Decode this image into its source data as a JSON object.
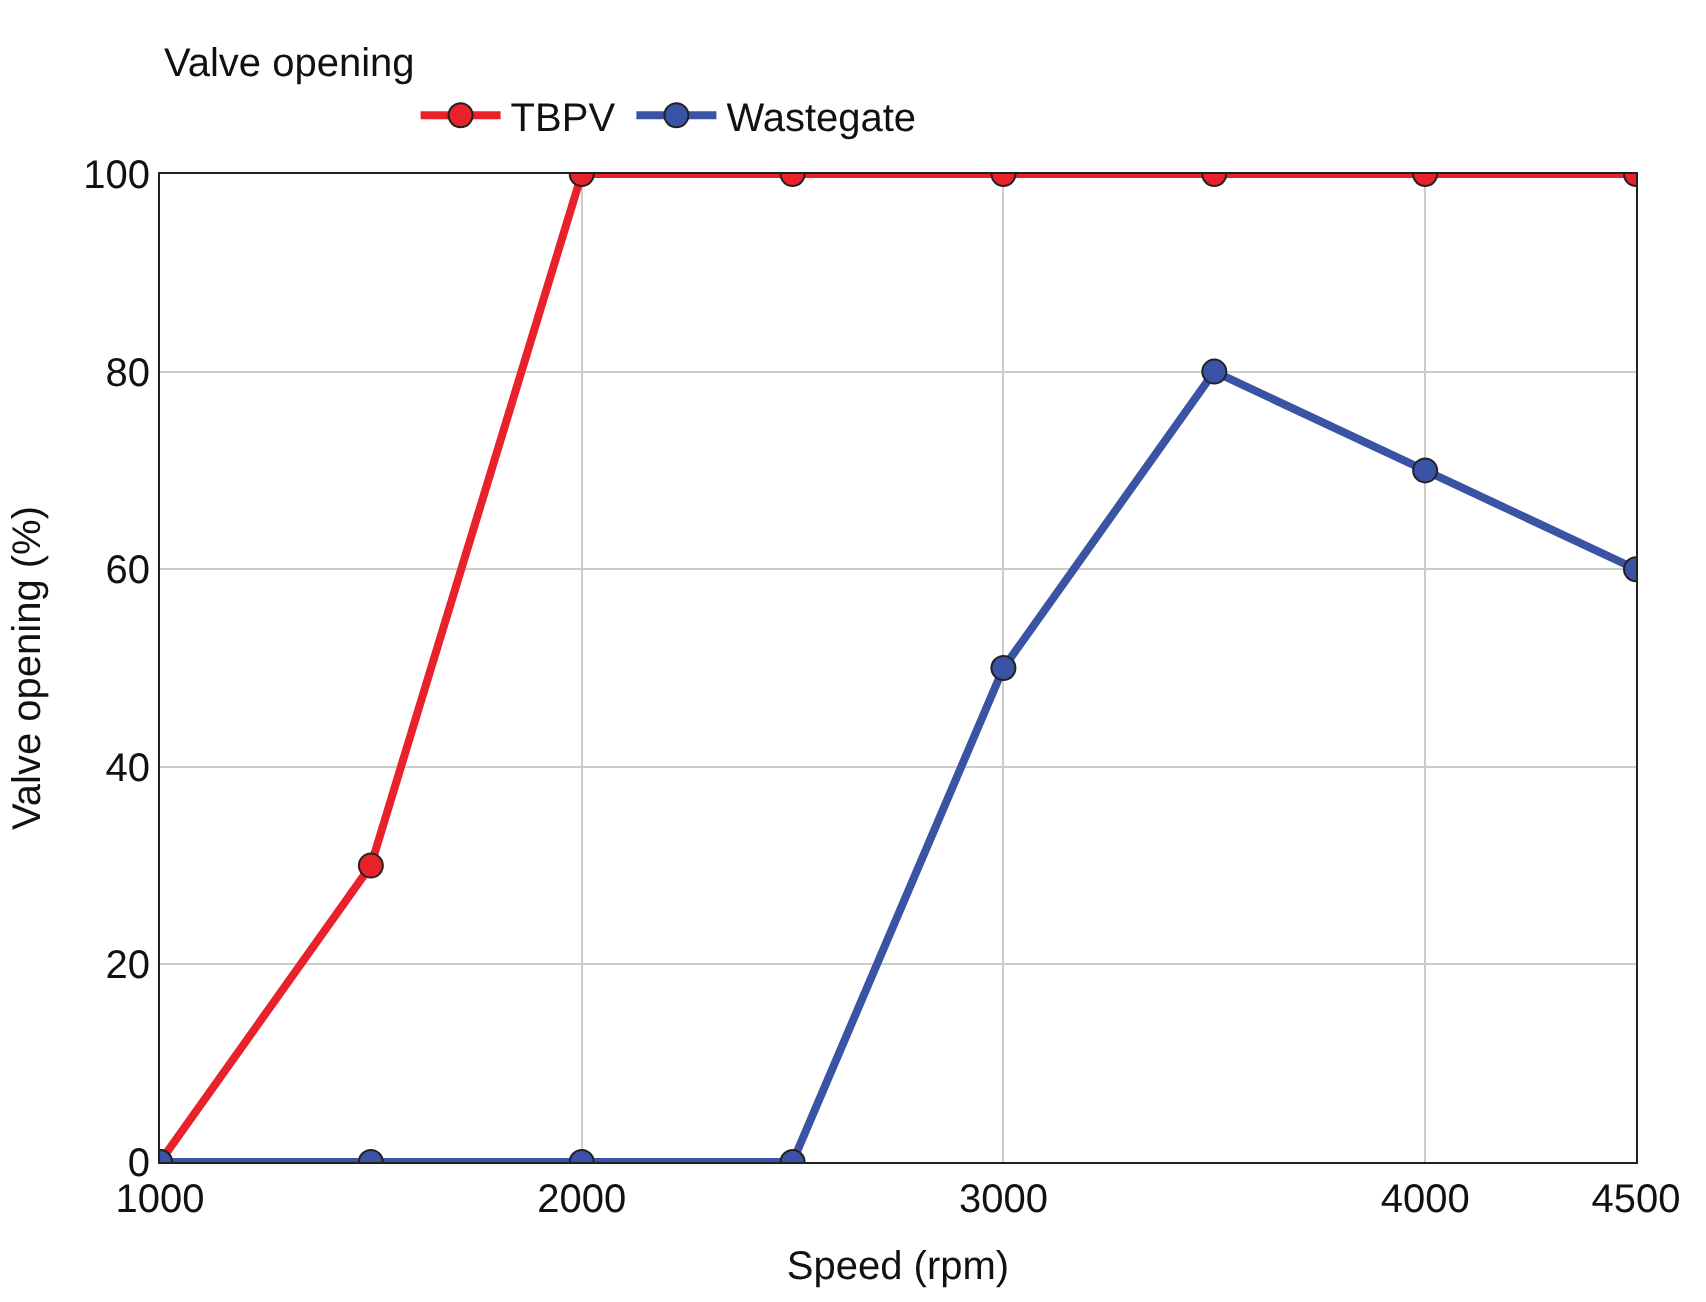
{
  "chart_data": {
    "type": "line",
    "xlabel": "Speed (rpm)",
    "ylabel": "Valve opening (%)",
    "legend_title": "Valve opening",
    "legend": "top left",
    "x": [
      1000,
      1500,
      2000,
      2500,
      3000,
      3500,
      4000,
      4500
    ],
    "series": [
      {
        "name": "TBPV",
        "color": "#e8212a",
        "values": [
          0,
          30,
          100,
          100,
          100,
          100,
          100,
          100
        ]
      },
      {
        "name": "Wastegate",
        "color": "#3a53a4",
        "values": [
          0,
          0,
          0,
          0,
          50,
          80,
          70,
          60
        ]
      }
    ],
    "xlim": [
      1000,
      4500
    ],
    "xticks": [
      1000,
      2000,
      3000,
      4000,
      4500
    ],
    "ylim": [
      0,
      100
    ],
    "yticks": [
      0,
      20,
      40,
      60,
      80,
      100
    ],
    "grid": true,
    "marker": "circle",
    "line_style": "solid"
  }
}
